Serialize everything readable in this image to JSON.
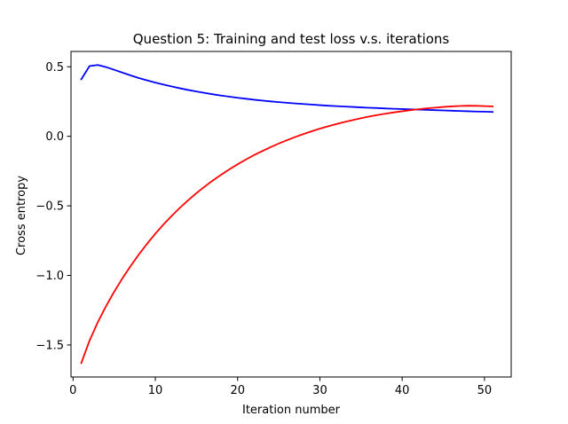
{
  "chart_data": {
    "type": "line",
    "title": "Question 5: Training and test loss v.s. iterations",
    "xlabel": "Iteration number",
    "ylabel": "Cross entropy",
    "xlim": [
      -0.25,
      53.25
    ],
    "ylim": [
      -1.73,
      0.61
    ],
    "xticks": [
      0,
      10,
      20,
      30,
      40,
      50
    ],
    "xtick_labels": [
      "0",
      "10",
      "20",
      "30",
      "40",
      "50"
    ],
    "yticks": [
      -1.5,
      -1.0,
      -0.5,
      0.0,
      0.5
    ],
    "ytick_labels": [
      "−1.5",
      "−1.0",
      "−0.5",
      "0.0",
      "0.5"
    ],
    "grid": false,
    "legend": "none",
    "x": [
      1,
      2,
      3,
      4,
      5,
      6,
      7,
      8,
      9,
      10,
      11,
      12,
      13,
      14,
      15,
      16,
      17,
      18,
      19,
      20,
      21,
      22,
      23,
      24,
      25,
      26,
      27,
      28,
      29,
      30,
      31,
      32,
      33,
      34,
      35,
      36,
      37,
      38,
      39,
      40,
      41,
      42,
      43,
      44,
      45,
      46,
      47,
      48,
      49,
      50,
      51
    ],
    "series": [
      {
        "color": "#0000ff",
        "values": [
          0.41,
          0.505,
          0.513,
          0.498,
          0.478,
          0.458,
          0.438,
          0.419,
          0.402,
          0.386,
          0.372,
          0.358,
          0.345,
          0.333,
          0.322,
          0.312,
          0.302,
          0.293,
          0.285,
          0.277,
          0.27,
          0.263,
          0.257,
          0.251,
          0.246,
          0.241,
          0.236,
          0.232,
          0.228,
          0.224,
          0.22,
          0.217,
          0.214,
          0.211,
          0.208,
          0.205,
          0.203,
          0.2,
          0.198,
          0.196,
          0.194,
          0.192,
          0.19,
          0.188,
          0.186,
          0.184,
          0.182,
          0.18,
          0.178,
          0.177,
          0.175
        ]
      },
      {
        "color": "#ff0000",
        "values": [
          -1.63,
          -1.469,
          -1.337,
          -1.222,
          -1.117,
          -1.021,
          -0.932,
          -0.849,
          -0.772,
          -0.7,
          -0.633,
          -0.571,
          -0.513,
          -0.459,
          -0.408,
          -0.361,
          -0.317,
          -0.276,
          -0.237,
          -0.201,
          -0.167,
          -0.135,
          -0.106,
          -0.078,
          -0.052,
          -0.028,
          -0.005,
          0.016,
          0.036,
          0.055,
          0.072,
          0.088,
          0.103,
          0.117,
          0.13,
          0.142,
          0.153,
          0.163,
          0.172,
          0.18,
          0.188,
          0.195,
          0.201,
          0.206,
          0.211,
          0.215,
          0.218,
          0.22,
          0.219,
          0.217,
          0.215
        ]
      }
    ]
  }
}
